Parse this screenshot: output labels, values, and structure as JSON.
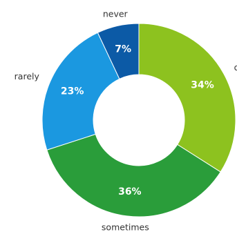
{
  "chart_data": {
    "type": "pie",
    "donut": true,
    "title": "",
    "categories": [
      "often",
      "sometimes",
      "rarely",
      "never"
    ],
    "values": [
      34,
      36,
      23,
      7
    ],
    "value_labels": [
      "34%",
      "36%",
      "23%",
      "7%"
    ],
    "colors": [
      "#8dc21f",
      "#2a9d3a",
      "#1b98e0",
      "#0c5aa6"
    ],
    "start_angle_deg": 0,
    "direction": "clockwise",
    "legend": "none"
  }
}
